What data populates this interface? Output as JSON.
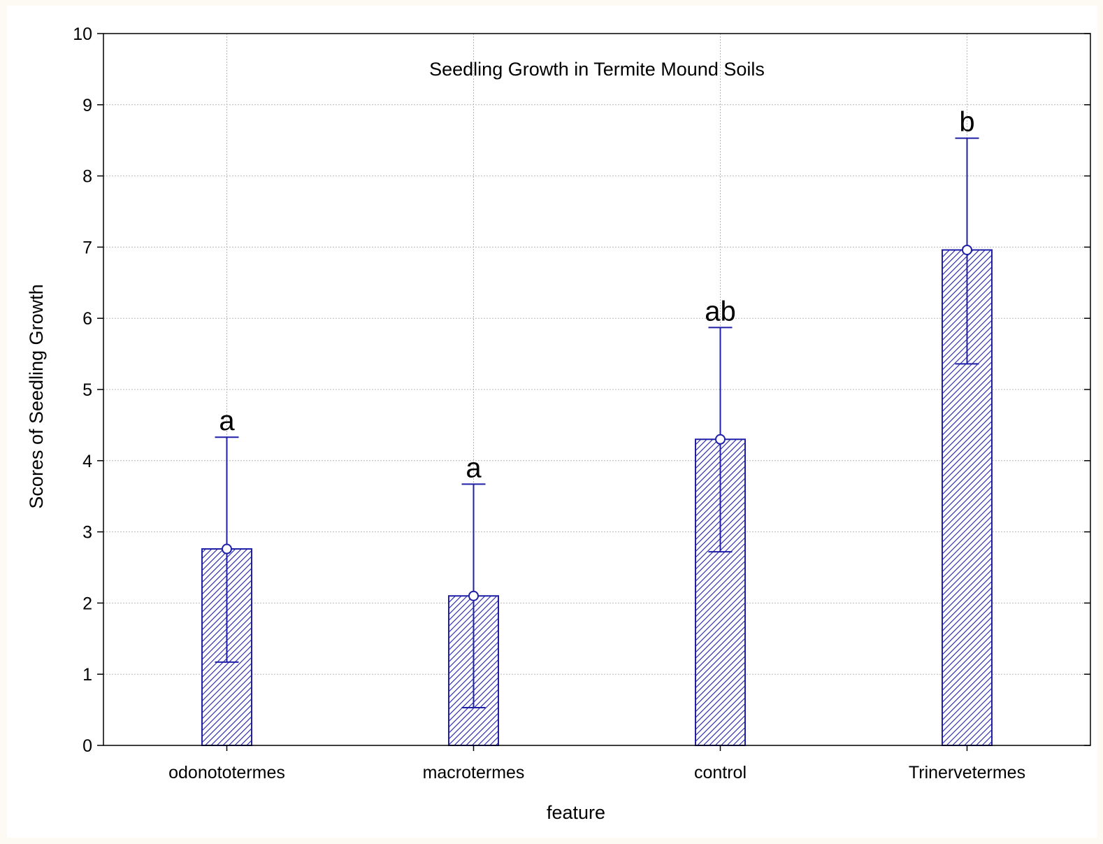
{
  "chart_data": {
    "type": "bar",
    "title": "Seedling Growth in Termite Mound Soils",
    "xlabel": "feature",
    "ylabel": "Scores of Seedling Growth",
    "ylim": [
      0,
      10
    ],
    "yticks": [
      "0",
      "1",
      "2",
      "3",
      "4",
      "5",
      "6",
      "7",
      "8",
      "9",
      "10"
    ],
    "categories": [
      "odonototermes",
      "macrotermes",
      "control",
      "Trinervetermes"
    ],
    "values": [
      2.76,
      2.1,
      4.3,
      6.96
    ],
    "error_low": [
      1.17,
      0.53,
      2.72,
      5.36
    ],
    "error_high": [
      4.33,
      3.67,
      5.87,
      8.53
    ],
    "significance_labels": [
      "a",
      "a",
      "ab",
      "b"
    ],
    "grid": true,
    "legend": "none",
    "colors": {
      "bar_edge": "#1f1fa8",
      "hatch": "#1f1fa8",
      "error_bar": "#1f1fa8",
      "mean_marker_fill": "#ffffff"
    }
  }
}
